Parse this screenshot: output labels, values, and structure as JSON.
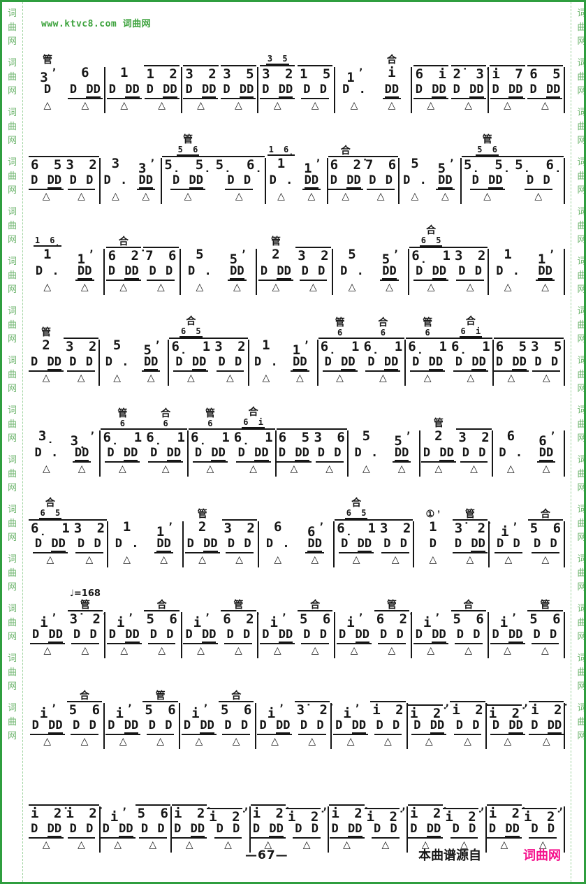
{
  "page": {
    "watermark_header": "www.ktvc8.com 词曲网",
    "side_text": "词曲网",
    "footer": {
      "page_number": "—67—",
      "source_label": "本曲谱源自",
      "source_brand": "词曲网"
    },
    "colors": {
      "border_green": "#2f9e3f",
      "watermark_green": "#3ca23c",
      "side_green": "#6cb46c",
      "brand_pink": "#f5108c",
      "ink": "#161616"
    }
  },
  "score": {
    "notation_type": "jianpu-percussion",
    "tempo_marking": "♩=168",
    "voice_tags": [
      "管",
      "合"
    ],
    "systems": [
      {
        "measures": [
          {
            "beats": [
              {
                "tag": "管",
                "note": "3 ’",
                "perc": "D"
              },
              {
                "note": "6",
                "perc": "D DD"
              }
            ]
          },
          {
            "beats": [
              {
                "note": "1",
                "perc": "D DD"
              },
              {
                "note": "1 2",
                "perc": "D DD"
              }
            ]
          },
          {
            "beats": [
              {
                "note": "3 2",
                "perc": "D DD"
              },
              {
                "note": "3 5",
                "perc": "D DD"
              }
            ]
          },
          {
            "beats": [
              {
                "grace": "3 5",
                "note": "3 2",
                "perc": "D DD"
              },
              {
                "note": "1 5",
                "perc": "D D"
              }
            ]
          },
          {
            "beats": [
              {
                "note": "1 ’",
                "perc": "D ."
              },
              {
                "tag": "合",
                "note": "i",
                "perc": "DD"
              }
            ]
          },
          {
            "beats": [
              {
                "note": "6 i",
                "perc": "D DD"
              },
              {
                "note": "2̇ 3̇",
                "perc": "D DD"
              }
            ]
          },
          {
            "beats": [
              {
                "note": "i 7",
                "perc": "D DD"
              },
              {
                "note": "6 5",
                "perc": "D DD"
              }
            ]
          }
        ]
      },
      {
        "measures": [
          {
            "beats": [
              {
                "note": "6 5",
                "perc": "D DD"
              },
              {
                "note": "3 2",
                "perc": "D D"
              }
            ]
          },
          {
            "beats": [
              {
                "note": "3",
                "perc": "D ."
              },
              {
                "note": "3 ’",
                "perc": "DD"
              }
            ]
          },
          {
            "beats": [
              {
                "tag": "管",
                "grace": "5 6",
                "note": "5̣ 5̣",
                "perc": "D DD"
              },
              {
                "note": "5̣ 6̣",
                "perc": "D D"
              }
            ]
          },
          {
            "beats": [
              {
                "grace": "1 6̣",
                "note": "1",
                "perc": "D ."
              },
              {
                "note": "1 ’",
                "perc": "DD"
              }
            ]
          },
          {
            "beats": [
              {
                "tag": "合",
                "note": "6 2̇",
                "perc": "D DD"
              },
              {
                "note": "7 6",
                "perc": "D D"
              }
            ]
          },
          {
            "beats": [
              {
                "note": "5",
                "perc": "D ."
              },
              {
                "note": "5 ’",
                "perc": "DD"
              }
            ]
          },
          {
            "beats": [
              {
                "tag": "管",
                "grace": "5 6",
                "note": "5̣ 5̣",
                "perc": "D DD"
              },
              {
                "note": "5̣ 6̣",
                "perc": "D D"
              }
            ]
          }
        ]
      },
      {
        "measures": [
          {
            "beats": [
              {
                "grace": "1 6̣",
                "note": "1",
                "perc": "D ."
              },
              {
                "note": "1 ’",
                "perc": "DD"
              }
            ]
          },
          {
            "beats": [
              {
                "tag": "合",
                "note": "6 2̇",
                "perc": "D DD"
              },
              {
                "note": "7 6",
                "perc": "D D"
              }
            ]
          },
          {
            "beats": [
              {
                "note": "5",
                "perc": "D ."
              },
              {
                "note": "5 ’",
                "perc": "DD"
              }
            ]
          },
          {
            "beats": [
              {
                "tag": "管",
                "note": "2",
                "perc": "D DD"
              },
              {
                "note": "3 2",
                "perc": "D D"
              }
            ]
          },
          {
            "beats": [
              {
                "note": "5",
                "perc": "D ."
              },
              {
                "note": "5 ’",
                "perc": "DD"
              }
            ]
          },
          {
            "beats": [
              {
                "tag": "合",
                "grace": "6 5",
                "note": "6̣ 1",
                "perc": "D DD"
              },
              {
                "note": "3 2",
                "perc": "D D"
              }
            ]
          },
          {
            "beats": [
              {
                "note": "1",
                "perc": "D ."
              },
              {
                "note": "1 ’",
                "perc": "DD"
              }
            ]
          }
        ]
      },
      {
        "measures": [
          {
            "beats": [
              {
                "tag": "管",
                "note": "2",
                "perc": "D DD"
              },
              {
                "note": "3 2",
                "perc": "D D"
              }
            ]
          },
          {
            "beats": [
              {
                "note": "5",
                "perc": "D ."
              },
              {
                "note": "5 ’",
                "perc": "DD"
              }
            ]
          },
          {
            "beats": [
              {
                "tag": "合",
                "grace": "6 5",
                "note": "6̣ 1",
                "perc": "D DD"
              },
              {
                "note": "3 2",
                "perc": "D D"
              }
            ]
          },
          {
            "beats": [
              {
                "note": "1",
                "perc": "D ."
              },
              {
                "note": "1 ’",
                "perc": "DD"
              }
            ]
          },
          {
            "beats": [
              {
                "tag": "管",
                "grace": "6",
                "note": "6̣ 1",
                "perc": "D DD"
              },
              {
                "tag": "合",
                "grace": "6",
                "note": "6̣ 1",
                "perc": "D DD"
              }
            ]
          },
          {
            "beats": [
              {
                "tag": "管",
                "grace": "6",
                "note": "6̣ 1",
                "perc": "D DD"
              },
              {
                "tag": "合",
                "grace": "6 i",
                "note": "6̣ 1",
                "perc": "D DD"
              }
            ]
          },
          {
            "beats": [
              {
                "note": "6 5",
                "perc": "D DD"
              },
              {
                "note": "3 5",
                "perc": "D D"
              }
            ]
          }
        ]
      },
      {
        "measures": [
          {
            "beats": [
              {
                "note": "3̣",
                "perc": "D ."
              },
              {
                "note": "3̣ ’",
                "perc": "DD"
              }
            ]
          },
          {
            "beats": [
              {
                "tag": "管",
                "grace": "6",
                "note": "6̣ 1",
                "perc": "D DD"
              },
              {
                "tag": "合",
                "grace": "6",
                "note": "6̣ 1",
                "perc": "D DD"
              }
            ]
          },
          {
            "beats": [
              {
                "tag": "管",
                "grace": "6",
                "note": "6̣ 1",
                "perc": "D DD"
              },
              {
                "tag": "合",
                "grace": "6 i",
                "note": "6̣ 1",
                "perc": "D DD"
              }
            ]
          },
          {
            "beats": [
              {
                "note": "6 5",
                "perc": "D DD"
              },
              {
                "note": "3 6",
                "perc": "D D"
              }
            ]
          },
          {
            "beats": [
              {
                "note": "5",
                "perc": "D ."
              },
              {
                "note": "5 ’",
                "perc": "DD"
              }
            ]
          },
          {
            "beats": [
              {
                "tag": "管",
                "note": "2",
                "perc": "D DD"
              },
              {
                "note": "3 2",
                "perc": "D D"
              }
            ]
          },
          {
            "beats": [
              {
                "note": "6",
                "perc": "D ."
              },
              {
                "note": "6 ’",
                "perc": "DD"
              }
            ]
          }
        ]
      },
      {
        "measures": [
          {
            "beats": [
              {
                "tag": "合",
                "grace": "6 5",
                "note": "6̣ 1",
                "perc": "D DD"
              },
              {
                "note": "3 2",
                "perc": "D D"
              }
            ]
          },
          {
            "beats": [
              {
                "note": "1",
                "perc": "D ."
              },
              {
                "note": "1 ’",
                "perc": "DD"
              }
            ]
          },
          {
            "beats": [
              {
                "tag": "管",
                "note": "2",
                "perc": "D DD"
              },
              {
                "note": "3 2",
                "perc": "D D"
              }
            ]
          },
          {
            "beats": [
              {
                "note": "6",
                "perc": "D ."
              },
              {
                "note": "6 ’",
                "perc": "DD"
              }
            ]
          },
          {
            "beats": [
              {
                "tag": "合",
                "grace": "6 5",
                "note": "6̣ 1",
                "perc": "D DD"
              },
              {
                "note": "3 2",
                "perc": "D D"
              }
            ]
          },
          {
            "beats": [
              {
                "tag": "① ’",
                "note": "1",
                "perc": "D"
              },
              {
                "tag": "管",
                "note": "3̇ 2̇",
                "perc": "D DD"
              }
            ]
          },
          {
            "beats": [
              {
                "note": "i ’",
                "perc": "D D"
              },
              {
                "tag": "合",
                "note": "5 6",
                "perc": "D D"
              }
            ]
          }
        ]
      },
      {
        "measures": [
          {
            "beats": [
              {
                "note": "i ’",
                "perc": "D DD"
              },
              {
                "tempo": "♩=168",
                "tag": "管",
                "note": "3̇ 2̇",
                "perc": "D D"
              }
            ]
          },
          {
            "beats": [
              {
                "note": "i ’",
                "perc": "D DD"
              },
              {
                "tag": "合",
                "note": "5 6",
                "perc": "D D"
              }
            ]
          },
          {
            "beats": [
              {
                "note": "i ’",
                "perc": "D DD"
              },
              {
                "tag": "管",
                "note": "6 2̇",
                "perc": "D D"
              }
            ]
          },
          {
            "beats": [
              {
                "note": "i ’",
                "perc": "D DD"
              },
              {
                "tag": "合",
                "note": "5 6",
                "perc": "D D"
              }
            ]
          },
          {
            "beats": [
              {
                "note": "i ’",
                "perc": "D DD"
              },
              {
                "tag": "管",
                "note": "6 2̇",
                "perc": "D D"
              }
            ]
          },
          {
            "beats": [
              {
                "note": "i ’",
                "perc": "D DD"
              },
              {
                "tag": "合",
                "note": "5 6",
                "perc": "D D"
              }
            ]
          },
          {
            "beats": [
              {
                "note": "i ’",
                "perc": "D DD"
              },
              {
                "tag": "管",
                "note": "5 6",
                "perc": "D D"
              }
            ]
          }
        ]
      },
      {
        "measures": [
          {
            "beats": [
              {
                "note": "i ’",
                "perc": "D DD"
              },
              {
                "tag": "合",
                "note": "5 6",
                "perc": "D D"
              }
            ]
          },
          {
            "beats": [
              {
                "note": "i ’",
                "perc": "D DD"
              },
              {
                "tag": "管",
                "note": "5 6",
                "perc": "D D"
              }
            ]
          },
          {
            "beats": [
              {
                "note": "i ’",
                "perc": "D DD"
              },
              {
                "tag": "合",
                "note": "5 6",
                "perc": "D D"
              }
            ]
          },
          {
            "beats": [
              {
                "note": "i ’",
                "perc": "D DD"
              },
              {
                "note": "3̇ 2̇",
                "perc": "D D"
              }
            ]
          },
          {
            "beats": [
              {
                "note": "i ’",
                "perc": "D DD"
              },
              {
                "note": "i 2̇",
                "perc": "D D"
              }
            ]
          },
          {
            "beats": [
              {
                "note": "i 2̇ ’",
                "perc": "D DD"
              },
              {
                "note": "i 2̇",
                "perc": "D D"
              }
            ]
          },
          {
            "beats": [
              {
                "note": "i 2̇ ’",
                "perc": "D DD"
              },
              {
                "note": "i 2̇",
                "perc": "D DD"
              }
            ]
          }
        ]
      },
      {
        "measures": [
          {
            "beats": [
              {
                "note": "i 2̇",
                "perc": "D DD"
              },
              {
                "note": "i 2̇",
                "perc": "D D"
              }
            ]
          },
          {
            "beats": [
              {
                "note": "i ’",
                "perc": "D DD"
              },
              {
                "note": "5 6",
                "perc": "D D"
              }
            ]
          },
          {
            "beats": [
              {
                "note": "i 2̇",
                "perc": "D DD"
              },
              {
                "note": "i 2̇ ’",
                "perc": "D D"
              }
            ]
          },
          {
            "beats": [
              {
                "note": "i 2̇",
                "perc": "D DD"
              },
              {
                "note": "i 2̇ ’",
                "perc": "D D"
              }
            ]
          },
          {
            "beats": [
              {
                "note": "i 2̇",
                "perc": "D DD"
              },
              {
                "note": "i 2̇ ’",
                "perc": "D D"
              }
            ]
          },
          {
            "beats": [
              {
                "note": "i 2̇",
                "perc": "D DD"
              },
              {
                "note": "i 2̇ ’",
                "perc": "D D"
              }
            ]
          },
          {
            "beats": [
              {
                "note": "i 2̇",
                "perc": "D DD"
              },
              {
                "note": "i 2̇ ’",
                "perc": "D D"
              }
            ]
          }
        ]
      }
    ]
  }
}
